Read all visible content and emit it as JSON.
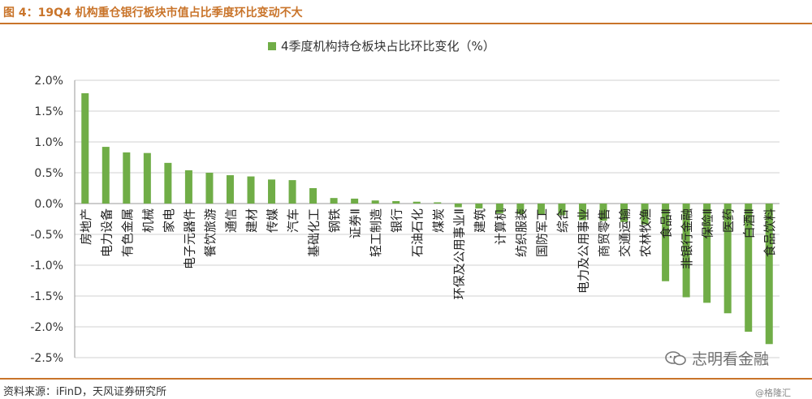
{
  "header": {
    "title": "图 4：19Q4 机构重仓银行板块市值占比季度环比变动不大"
  },
  "footer": {
    "source": "资料来源：iFinD，天风证券研究所"
  },
  "watermark": {
    "text": "志明看金融",
    "text2": "@格隆汇"
  },
  "colors": {
    "bar": "#70ad47",
    "axis": "#999999",
    "grid": "#d0d0d0"
  },
  "chart_data": {
    "type": "bar",
    "legend": "4季度机构持仓板块占比环比变化（%）",
    "legend_position": "top-center",
    "grid": true,
    "ylim": [
      -2.5,
      2.0
    ],
    "yticks": [
      "2.0%",
      "1.5%",
      "1.0%",
      "0.5%",
      "0.0%",
      "-0.5%",
      "-1.0%",
      "-1.5%",
      "-2.0%",
      "-2.5%"
    ],
    "categories": [
      "房地产",
      "电力设备",
      "有色金属",
      "机械",
      "家电",
      "电子元器件",
      "餐饮旅游",
      "通信",
      "建材",
      "传媒",
      "汽车",
      "基础化工",
      "钢铁",
      "证券Ⅱ",
      "轻工制造",
      "银行",
      "石油石化",
      "煤炭",
      "环保及公用事业Ⅱ",
      "建筑",
      "计算机",
      "纺织服装",
      "国防军工",
      "综合",
      "电力及公用事业",
      "商贸零售",
      "交通运输",
      "农林牧渔",
      "食品Ⅱ",
      "非银行金融",
      "保险Ⅱ",
      "医药",
      "白酒Ⅱ",
      "食品饮料"
    ],
    "values": [
      1.79,
      0.92,
      0.83,
      0.82,
      0.66,
      0.54,
      0.5,
      0.46,
      0.44,
      0.39,
      0.38,
      0.25,
      0.09,
      0.08,
      0.05,
      0.04,
      0.03,
      0.02,
      -0.06,
      -0.08,
      -0.16,
      -0.17,
      -0.18,
      -0.19,
      -0.27,
      -0.28,
      -0.3,
      -0.34,
      -1.26,
      -1.52,
      -1.61,
      -1.78,
      -2.08,
      -2.28
    ]
  }
}
